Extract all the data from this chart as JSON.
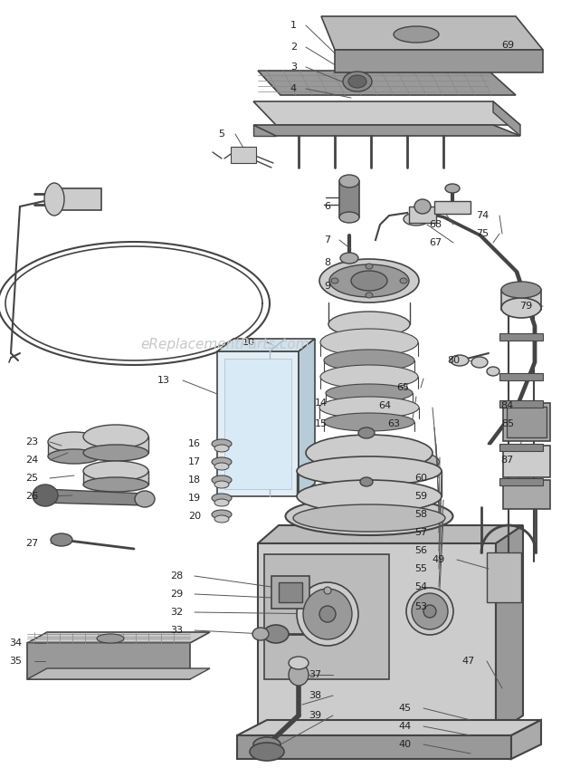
{
  "bg_color": "#ffffff",
  "line_color": "#444444",
  "gray1": "#bbbbbb",
  "gray2": "#999999",
  "gray3": "#cccccc",
  "gray4": "#888888",
  "gray5": "#aaaaaa",
  "dark": "#666666",
  "watermark": "eReplacementParts.com",
  "figw": 6.2,
  "figh": 8.48,
  "dpi": 100,
  "part_labels": [
    [
      "1",
      335,
      28
    ],
    [
      "2",
      335,
      52
    ],
    [
      "3",
      335,
      74
    ],
    [
      "4",
      335,
      98
    ],
    [
      "5",
      255,
      148
    ],
    [
      "6",
      370,
      235
    ],
    [
      "7",
      370,
      270
    ],
    [
      "8",
      370,
      295
    ],
    [
      "9",
      370,
      318
    ],
    [
      "10",
      290,
      378
    ],
    [
      "13",
      192,
      420
    ],
    [
      "14",
      370,
      440
    ],
    [
      "15",
      370,
      462
    ],
    [
      "16",
      228,
      490
    ],
    [
      "17",
      228,
      510
    ],
    [
      "18",
      228,
      530
    ],
    [
      "19",
      228,
      550
    ],
    [
      "20",
      228,
      570
    ],
    [
      "23",
      52,
      488
    ],
    [
      "24",
      52,
      508
    ],
    [
      "25",
      52,
      528
    ],
    [
      "26",
      52,
      548
    ],
    [
      "27",
      52,
      600
    ],
    [
      "28",
      210,
      642
    ],
    [
      "29",
      210,
      660
    ],
    [
      "32",
      210,
      678
    ],
    [
      "33",
      210,
      696
    ],
    [
      "34",
      36,
      730
    ],
    [
      "35",
      36,
      750
    ],
    [
      "37",
      362,
      750
    ],
    [
      "38",
      362,
      770
    ],
    [
      "39",
      362,
      790
    ],
    [
      "40",
      460,
      822
    ],
    [
      "44",
      460,
      802
    ],
    [
      "45",
      460,
      782
    ],
    [
      "47",
      530,
      730
    ],
    [
      "49",
      498,
      620
    ],
    [
      "53",
      478,
      668
    ],
    [
      "54",
      478,
      648
    ],
    [
      "55",
      478,
      628
    ],
    [
      "56",
      478,
      608
    ],
    [
      "57",
      478,
      588
    ],
    [
      "58",
      478,
      568
    ],
    [
      "59",
      478,
      548
    ],
    [
      "60",
      478,
      528
    ],
    [
      "63",
      450,
      468
    ],
    [
      "64",
      440,
      448
    ],
    [
      "65",
      460,
      428
    ],
    [
      "67",
      490,
      268
    ],
    [
      "68",
      490,
      248
    ],
    [
      "69",
      570,
      50
    ],
    [
      "74",
      542,
      238
    ],
    [
      "75",
      542,
      258
    ],
    [
      "79",
      590,
      338
    ],
    [
      "80",
      510,
      398
    ],
    [
      "84",
      570,
      448
    ],
    [
      "85",
      570,
      468
    ],
    [
      "87",
      570,
      508
    ]
  ]
}
